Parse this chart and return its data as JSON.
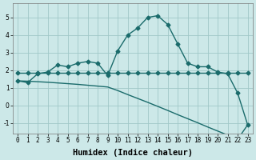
{
  "xlabel": "Humidex (Indice chaleur)",
  "background_color": "#cce8e8",
  "grid_color": "#a0c8c8",
  "line_color": "#1a6b6b",
  "xlim": [
    -0.5,
    23.5
  ],
  "ylim": [
    -1.6,
    5.8
  ],
  "xticks": [
    0,
    1,
    2,
    3,
    4,
    5,
    6,
    7,
    8,
    9,
    10,
    11,
    12,
    13,
    14,
    15,
    16,
    17,
    18,
    19,
    20,
    21,
    22,
    23
  ],
  "yticks": [
    -1,
    0,
    1,
    2,
    3,
    4,
    5
  ],
  "series1_x": [
    0,
    1,
    2,
    3,
    4,
    5,
    6,
    7,
    8,
    9,
    10,
    11,
    12,
    13,
    14,
    15,
    16,
    17,
    18,
    19,
    20,
    21,
    22,
    23
  ],
  "series1_y": [
    1.4,
    1.3,
    1.8,
    1.9,
    2.3,
    2.2,
    2.4,
    2.5,
    2.4,
    1.7,
    3.1,
    4.0,
    4.4,
    5.0,
    5.1,
    4.6,
    3.5,
    2.4,
    2.2,
    2.2,
    1.9,
    1.8,
    0.7,
    -1.1
  ],
  "series2_x": [
    0,
    1,
    2,
    3,
    4,
    5,
    6,
    7,
    8,
    9,
    10,
    11,
    12,
    13,
    14,
    15,
    16,
    17,
    18,
    19,
    20,
    21,
    22,
    23
  ],
  "series2_y": [
    1.85,
    1.85,
    1.85,
    1.85,
    1.85,
    1.85,
    1.85,
    1.85,
    1.85,
    1.85,
    1.85,
    1.85,
    1.85,
    1.85,
    1.85,
    1.85,
    1.85,
    1.85,
    1.85,
    1.85,
    1.85,
    1.85,
    1.85,
    1.85
  ],
  "series3_x": [
    0,
    1,
    2,
    3,
    4,
    5,
    6,
    7,
    8,
    9,
    10,
    11,
    12,
    13,
    14,
    15,
    16,
    17,
    18,
    19,
    20,
    21,
    22,
    23
  ],
  "series3_y": [
    1.4,
    1.38,
    1.35,
    1.32,
    1.28,
    1.24,
    1.2,
    1.15,
    1.1,
    1.05,
    0.85,
    0.62,
    0.4,
    0.18,
    -0.05,
    -0.28,
    -0.52,
    -0.75,
    -0.98,
    -1.22,
    -1.45,
    -1.68,
    -1.92,
    -1.1
  ],
  "marker_size": 2.5,
  "line_width": 1.0,
  "tick_fontsize": 5.5,
  "label_fontsize": 7.5
}
